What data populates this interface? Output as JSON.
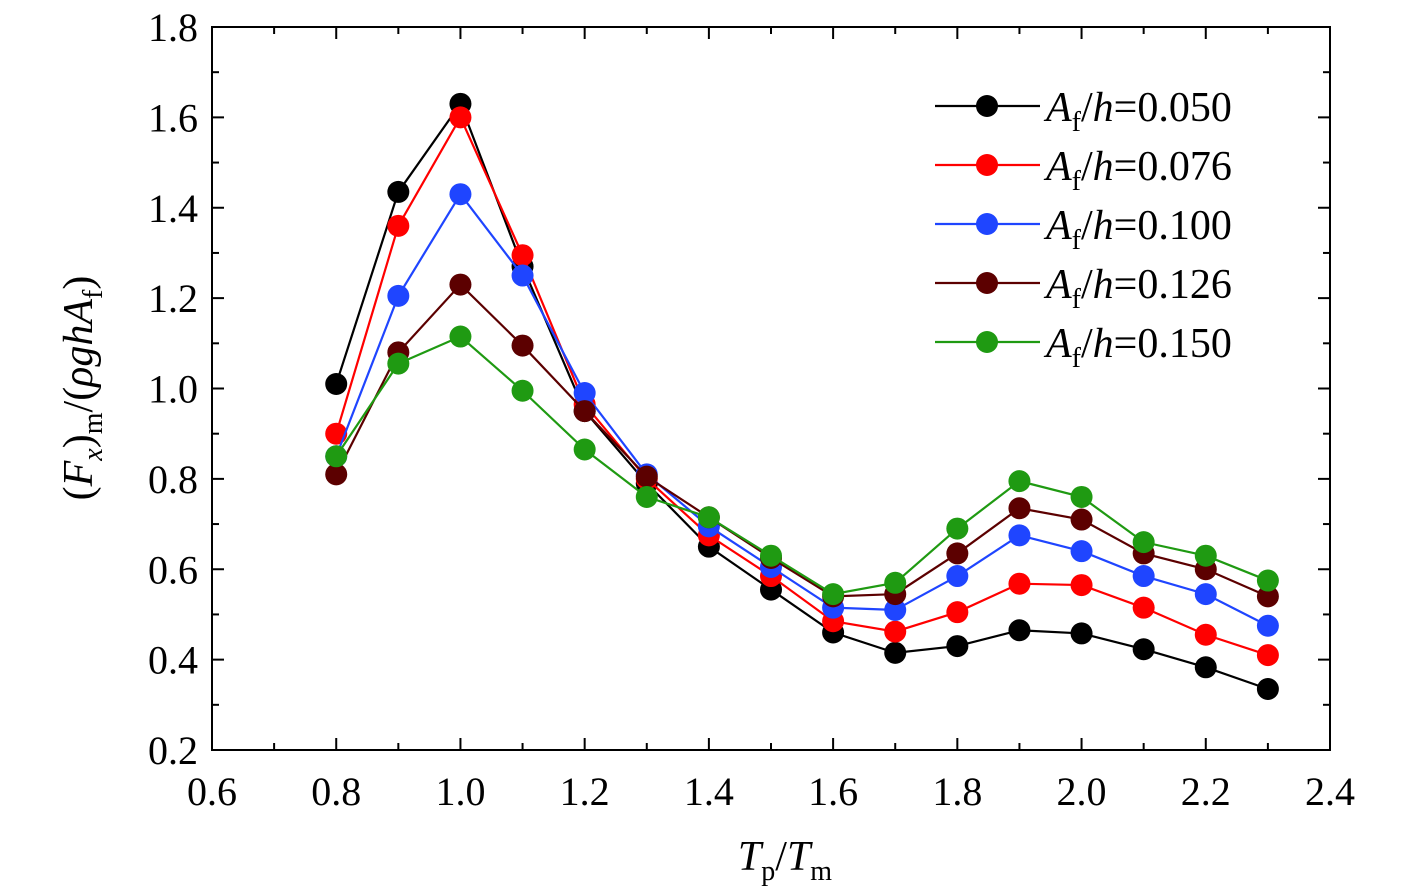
{
  "chart_data": {
    "type": "line",
    "x": [
      0.8,
      0.9,
      1.0,
      1.1,
      1.2,
      1.3,
      1.4,
      1.5,
      1.6,
      1.7,
      1.8,
      1.9,
      2.0,
      2.1,
      2.2,
      2.3
    ],
    "xlim": [
      0.6,
      2.4
    ],
    "ylim": [
      0.2,
      1.8
    ],
    "x_ticks": [
      "0.6",
      "0.8",
      "1.0",
      "1.2",
      "1.4",
      "1.6",
      "1.8",
      "2.0",
      "2.2",
      "2.4"
    ],
    "y_ticks": [
      "0.2",
      "0.4",
      "0.6",
      "0.8",
      "1.0",
      "1.2",
      "1.4",
      "1.6",
      "1.8"
    ],
    "x_tick_values": [
      0.6,
      0.8,
      1.0,
      1.2,
      1.4,
      1.6,
      1.8,
      2.0,
      2.2,
      2.4
    ],
    "y_tick_values": [
      0.2,
      0.4,
      0.6,
      0.8,
      1.0,
      1.2,
      1.4,
      1.6,
      1.8
    ],
    "xlabel": {
      "T1": "T",
      "sub1": "p",
      "slash": "/",
      "T2": "T",
      "sub2": "m"
    },
    "ylabel": {
      "open": "(",
      "F": "F",
      "subx": "x",
      "close": ")",
      "subm": "m",
      "rest": "/(",
      "rho": "ρgh",
      "A": "A",
      "subf": "f",
      "end": ")"
    },
    "legend_placement": "top-right",
    "grid": false,
    "series": [
      {
        "name": "A_f/h=0.050",
        "sym": "A",
        "sub": "f",
        "slash": "/",
        "h": "h",
        "eq": "=0.050",
        "color": "#000000",
        "values": [
          1.01,
          1.435,
          1.63,
          1.27,
          0.95,
          0.79,
          0.65,
          0.555,
          0.46,
          0.415,
          0.43,
          0.465,
          0.458,
          0.423,
          0.383,
          0.335
        ]
      },
      {
        "name": "A_f/h=0.076",
        "sym": "A",
        "sub": "f",
        "slash": "/",
        "h": "h",
        "eq": "=0.076",
        "color": "#ff0000",
        "values": [
          0.9,
          1.36,
          1.6,
          1.295,
          0.965,
          0.8,
          0.675,
          0.585,
          0.485,
          0.462,
          0.505,
          0.568,
          0.565,
          0.515,
          0.455,
          0.41
        ]
      },
      {
        "name": "A_f/h=0.100",
        "sym": "A",
        "sub": "f",
        "slash": "/",
        "h": "h",
        "eq": "=0.100",
        "color": "#1f45ff",
        "values": [
          0.85,
          1.205,
          1.43,
          1.25,
          0.99,
          0.81,
          0.695,
          0.605,
          0.515,
          0.51,
          0.585,
          0.675,
          0.64,
          0.585,
          0.545,
          0.475
        ]
      },
      {
        "name": "A_f/h=0.126",
        "sym": "A",
        "sub": "f",
        "slash": "/",
        "h": "h",
        "eq": "=0.126",
        "color": "#5c0000",
        "values": [
          0.81,
          1.08,
          1.23,
          1.095,
          0.95,
          0.805,
          0.715,
          0.625,
          0.54,
          0.545,
          0.635,
          0.735,
          0.71,
          0.635,
          0.6,
          0.54
        ]
      },
      {
        "name": "A_f/h=0.150",
        "sym": "A",
        "sub": "f",
        "slash": "/",
        "h": "h",
        "eq": "=0.150",
        "color": "#1f9a12",
        "values": [
          0.85,
          1.055,
          1.115,
          0.995,
          0.865,
          0.76,
          0.715,
          0.63,
          0.545,
          0.57,
          0.69,
          0.795,
          0.76,
          0.66,
          0.63,
          0.575
        ]
      }
    ]
  }
}
